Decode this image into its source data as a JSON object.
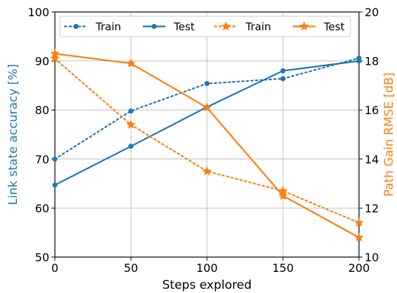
{
  "chart_data": {
    "type": "line",
    "title": "",
    "xlabel": "Steps explored",
    "ylabel": "Link state accuracy [%]",
    "y2label": "Path Gain RMSE [dB]",
    "x": [
      0,
      50,
      100,
      150,
      200
    ],
    "x_ticks": [
      "0",
      "50",
      "100",
      "150",
      "200"
    ],
    "xlim": [
      0,
      200
    ],
    "ylim": [
      50,
      100
    ],
    "y_ticks": [
      "50",
      "60",
      "70",
      "80",
      "90",
      "100"
    ],
    "y2lim": [
      10,
      20
    ],
    "y2_ticks": [
      "10",
      "12",
      "14",
      "16",
      "18",
      "20"
    ],
    "grid": true,
    "legend_position": "top",
    "series": [
      {
        "name": "Train",
        "axis": "left",
        "color": "#1f77b4",
        "linestyle": "dotted",
        "marker": "circle",
        "values": [
          70.0,
          79.8,
          85.4,
          86.4,
          90.6
        ]
      },
      {
        "name": "Test",
        "axis": "left",
        "color": "#1f77b4",
        "linestyle": "solid",
        "marker": "circle",
        "values": [
          64.7,
          72.6,
          80.6,
          88.0,
          90.0
        ]
      },
      {
        "name": "Train",
        "axis": "right",
        "color": "#ff7f0e",
        "linestyle": "dotted",
        "marker": "star",
        "values": [
          18.1,
          15.4,
          13.5,
          12.7,
          11.4
        ]
      },
      {
        "name": "Test",
        "axis": "right",
        "color": "#ff7f0e",
        "linestyle": "solid",
        "marker": "star",
        "values": [
          18.3,
          17.9,
          16.1,
          12.5,
          10.8
        ]
      }
    ]
  }
}
